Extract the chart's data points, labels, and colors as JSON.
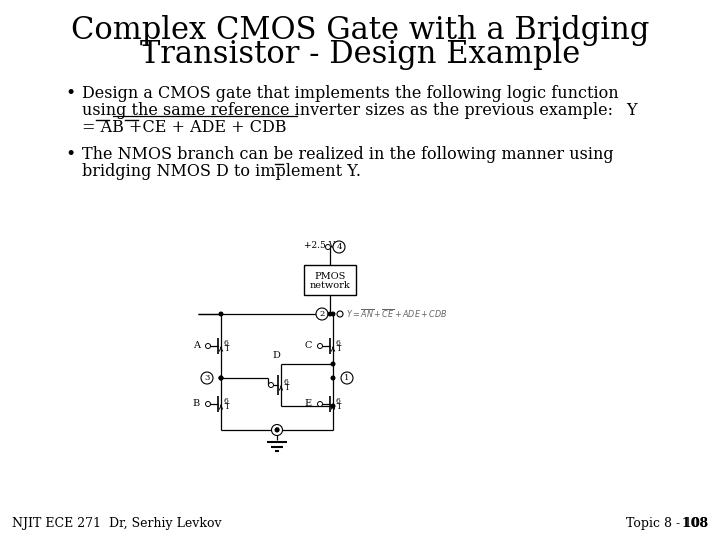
{
  "title_line1": "Complex CMOS Gate with a Bridging",
  "title_line2": "Transistor - Design Example",
  "title_fontsize": 22,
  "bg_color": "#ffffff",
  "text_color": "#000000",
  "bullet1_line1": "Design a CMOS gate that implements the following logic function",
  "bullet1_line2": "using the same reference inverter sizes as the previous example:",
  "bullet1_line3": "= AB +CE + ADE + CDB",
  "bullet1_Y": "Y",
  "bullet2_line1": "The NMOS branch can be realized in the following manner using",
  "bullet2_line2": "bridging NMOS D to implement Y.",
  "footer_left": "NJIT ECE 271  Dr, Serhiy Levkov",
  "footer_right": "Topic 8 - 108",
  "footer_fontsize": 9,
  "body_fontsize": 11.5
}
